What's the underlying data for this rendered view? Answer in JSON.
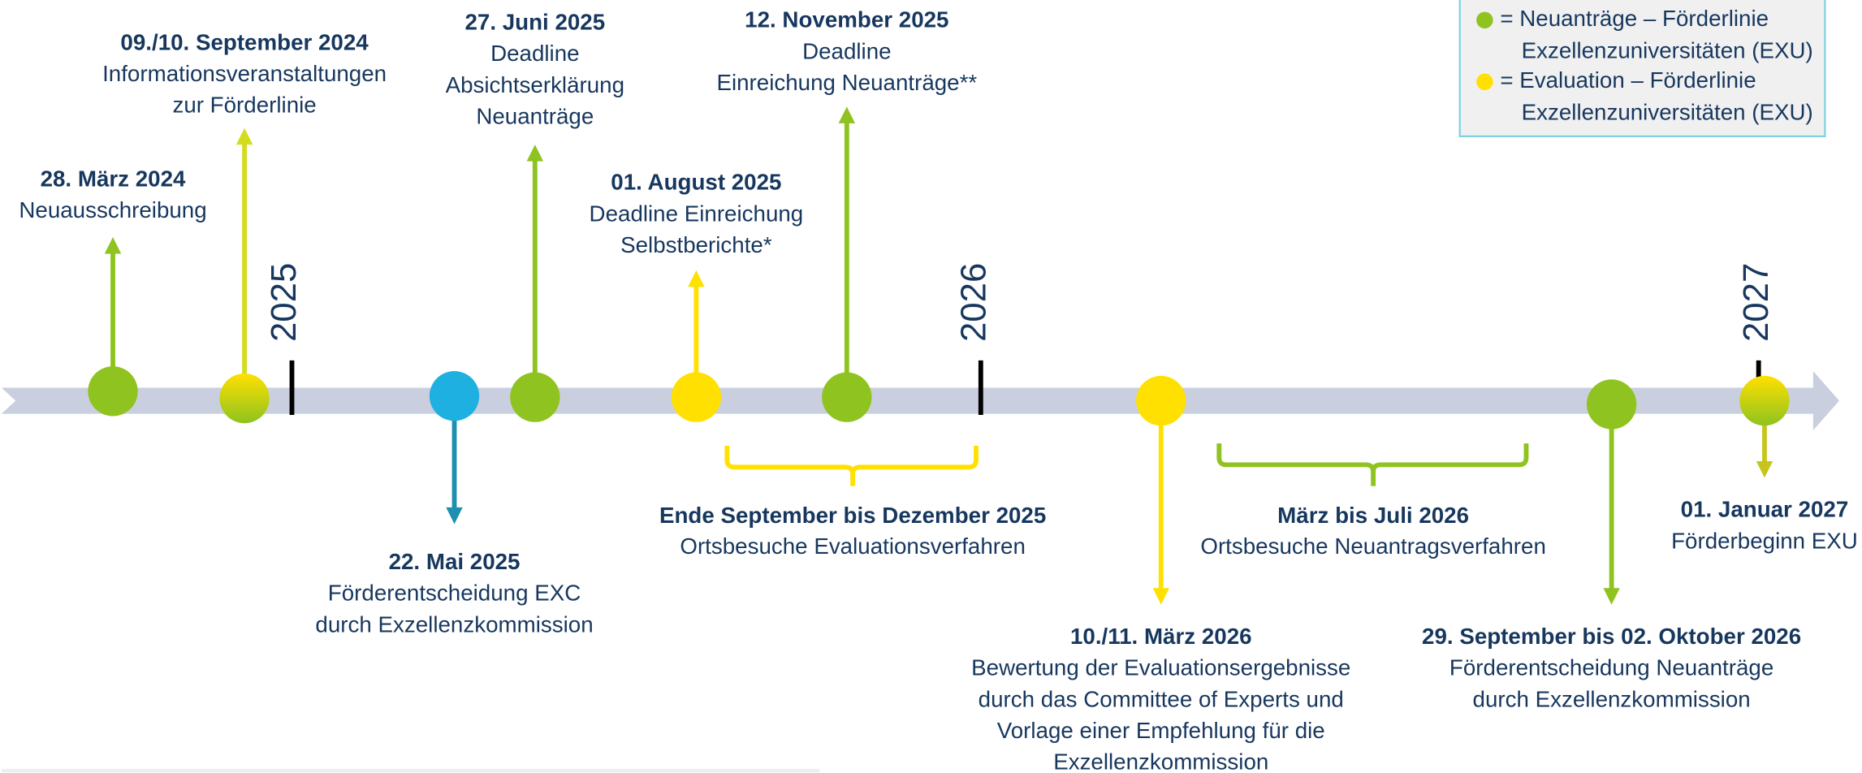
{
  "legend": [
    {
      "lines": [
        "= Neuanträge – Förderlinie",
        "Exzellenzuniversitäten (EXU)"
      ]
    },
    {
      "lines": [
        "= Evaluation – Förderlinie",
        "Exzellenzuniversitäten (EXU)"
      ]
    }
  ],
  "years": [
    "2025",
    "2026",
    "2027"
  ],
  "events": [
    {
      "title": "28. März 2024",
      "lines": [
        "Neuausschreibung"
      ]
    },
    {
      "title": "09./10. September 2024",
      "lines": [
        "Informationsveranstaltungen",
        "zur Förderlinie"
      ]
    },
    {
      "title": "22. Mai 2025",
      "lines": [
        "Förderentscheidung EXC",
        "durch Exzellenzkommission"
      ]
    },
    {
      "title": "27. Juni 2025",
      "lines": [
        "Deadline",
        "Absichtserklärung",
        "Neuanträge"
      ]
    },
    {
      "title": "01. August 2025",
      "lines": [
        "Deadline Einreichung",
        "Selbstberichte*"
      ]
    },
    {
      "title": "12. November 2025",
      "lines": [
        "Deadline",
        "Einreichung Neuanträge**"
      ]
    },
    {
      "title": "10./11. März 2026",
      "lines": [
        "Bewertung der Evaluationsergebnisse",
        "durch das Committee of Experts und",
        "Vorlage einer Empfehlung für die",
        "Exzellenzkommission"
      ]
    },
    {
      "title": "29. September bis 02. Oktober 2026",
      "lines": [
        "Förderentscheidung Neuanträge",
        "durch Exzellenzkommission"
      ]
    },
    {
      "title": "01. Januar 2027",
      "lines": [
        "Förderbeginn EXU"
      ]
    }
  ],
  "periods": [
    {
      "title": "Ende September bis Dezember 2025",
      "text": "Ortsbesuche Evaluationsverfahren"
    },
    {
      "title": "März bis Juli 2026",
      "text": "Ortsbesuche Neuantragsverfahren"
    }
  ]
}
